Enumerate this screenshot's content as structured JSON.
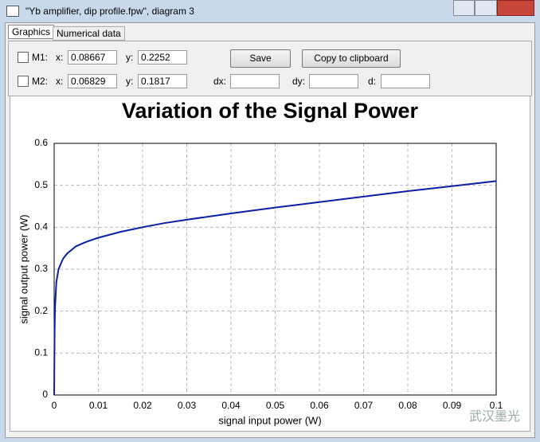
{
  "window": {
    "title": "\"Yb amplifier, dip profile.fpw\", diagram 3"
  },
  "tabs": [
    "Graphics",
    "Numerical data"
  ],
  "markers": [
    {
      "label": "M1:",
      "x_label": "x:",
      "x": "0.08667",
      "y_label": "y:",
      "y": "0.2252"
    },
    {
      "label": "M2:",
      "x_label": "x:",
      "x": "0.06829",
      "y_label": "y:",
      "y": "0.1817"
    }
  ],
  "delta_labels": [
    "dx:",
    "dy:",
    "d:"
  ],
  "buttons": [
    "Save",
    "Copy to clipboard"
  ],
  "watermark": "武汉墨光",
  "chart_data": {
    "type": "line",
    "title": "Variation of the Signal Power",
    "x_label": "signal input power (W)",
    "y_label": "signal output power (W)",
    "x": [
      0,
      0.0001,
      0.0002,
      0.0005,
      0.001,
      0.002,
      0.003,
      0.005,
      0.0075,
      0.01,
      0.015,
      0.02,
      0.025,
      0.03,
      0.04,
      0.05,
      0.06,
      0.07,
      0.08,
      0.09,
      0.1
    ],
    "values": [
      0,
      0.15,
      0.21,
      0.27,
      0.3,
      0.325,
      0.338,
      0.355,
      0.366,
      0.375,
      0.389,
      0.4,
      0.41,
      0.418,
      0.433,
      0.447,
      0.46,
      0.473,
      0.486,
      0.498,
      0.51
    ],
    "color": "#0a1fa8",
    "xlim": [
      0,
      0.1
    ],
    "xticks": [
      0,
      0.01,
      0.02,
      0.03,
      0.04,
      0.05,
      0.06,
      0.07,
      0.08,
      0.09,
      0.1
    ],
    "ylim": [
      0,
      0.6
    ],
    "yticks": [
      0,
      0.1,
      0.2,
      0.3,
      0.4,
      0.5,
      0.6
    ],
    "grid": true
  }
}
